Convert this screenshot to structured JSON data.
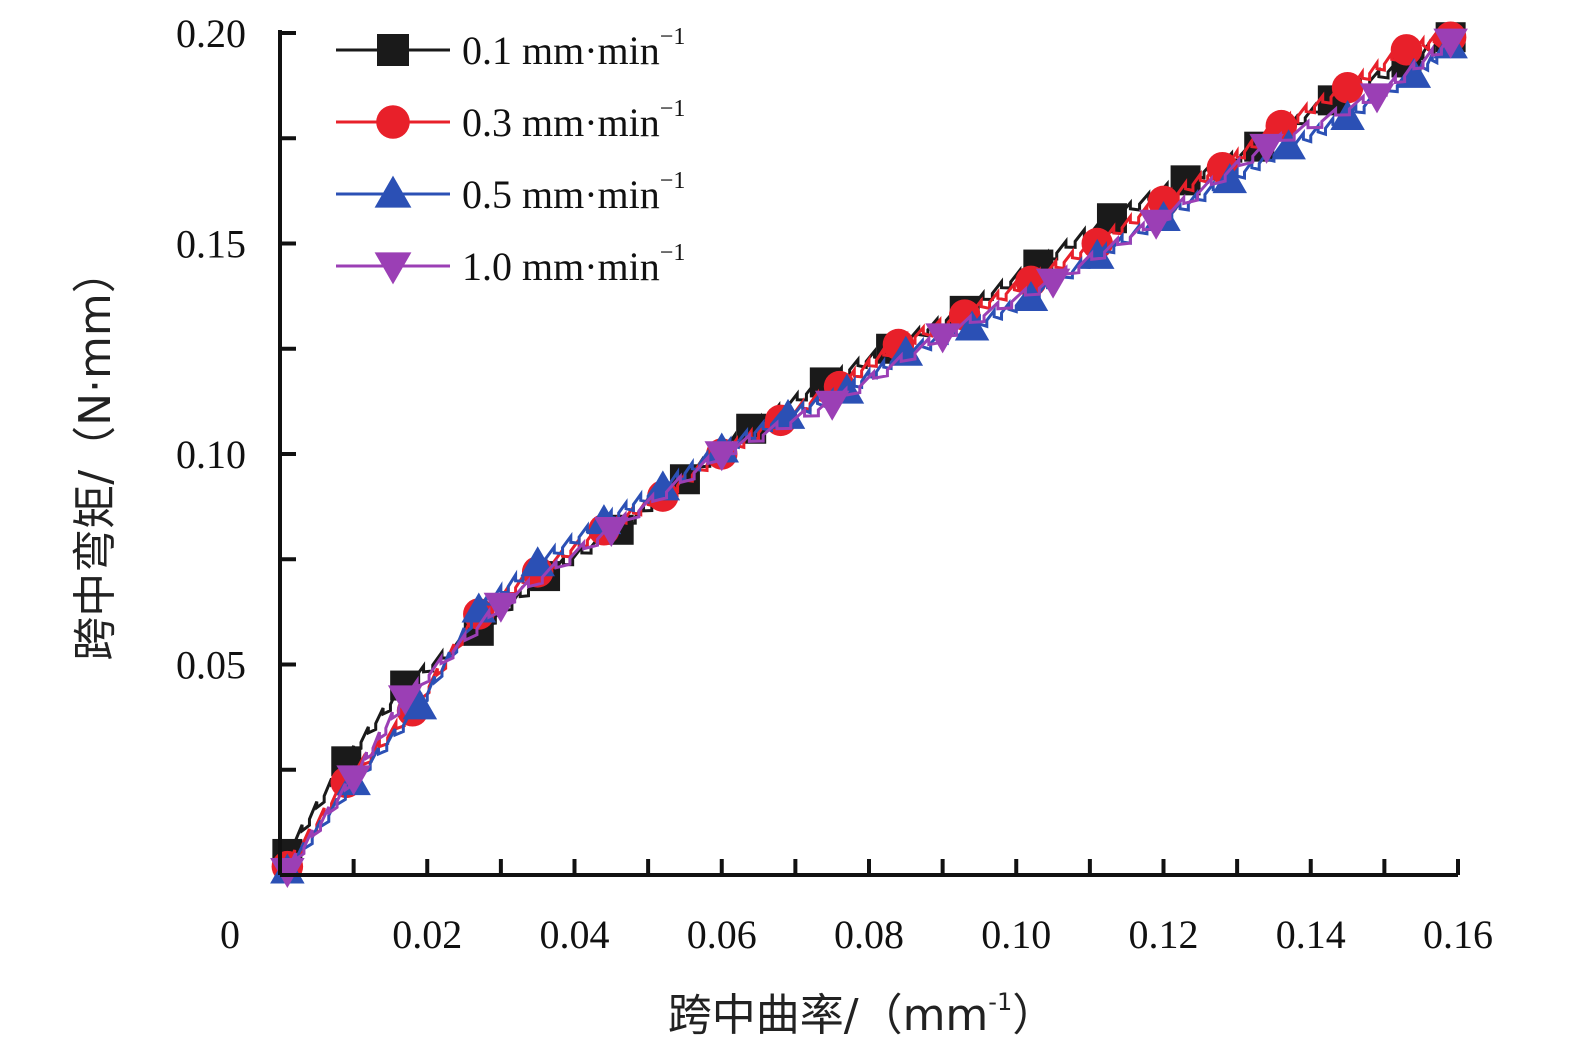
{
  "chart_data": {
    "type": "line",
    "title": "",
    "xlabel": "跨中曲率/（mm",
    "xlabel_sup": "-1",
    "xlabel_end": "）",
    "ylabel": "跨中弯矩/（N·mm）",
    "xlim": [
      0,
      0.16
    ],
    "ylim": [
      0,
      0.2
    ],
    "x_ticks": [
      "0",
      "0.02",
      "0.04",
      "0.06",
      "0.08",
      "0.10",
      "0.12",
      "0.14",
      "0.16"
    ],
    "y_ticks": [
      "0",
      "0.05",
      "0.10",
      "0.15",
      "0.20"
    ],
    "grid": false,
    "legend_position": "top-left",
    "series": [
      {
        "name": "0.1 mm·min",
        "sup": "−1",
        "color": "#1a1a1a",
        "marker": "square",
        "points": [
          [
            0.001,
            0.005
          ],
          [
            0.009,
            0.027
          ],
          [
            0.017,
            0.045
          ],
          [
            0.027,
            0.058
          ],
          [
            0.036,
            0.071
          ],
          [
            0.046,
            0.082
          ],
          [
            0.055,
            0.094
          ],
          [
            0.064,
            0.106
          ],
          [
            0.074,
            0.117
          ],
          [
            0.083,
            0.125
          ],
          [
            0.093,
            0.134
          ],
          [
            0.103,
            0.145
          ],
          [
            0.113,
            0.156
          ],
          [
            0.123,
            0.165
          ],
          [
            0.133,
            0.173
          ],
          [
            0.143,
            0.184
          ],
          [
            0.153,
            0.193
          ],
          [
            0.159,
            0.199
          ]
        ]
      },
      {
        "name": "0.3 mm·min",
        "sup": "−1",
        "color": "#e8202a",
        "marker": "circle",
        "points": [
          [
            0.001,
            0.002
          ],
          [
            0.009,
            0.022
          ],
          [
            0.018,
            0.039
          ],
          [
            0.027,
            0.062
          ],
          [
            0.035,
            0.072
          ],
          [
            0.044,
            0.082
          ],
          [
            0.052,
            0.09
          ],
          [
            0.06,
            0.1
          ],
          [
            0.068,
            0.108
          ],
          [
            0.076,
            0.116
          ],
          [
            0.084,
            0.126
          ],
          [
            0.093,
            0.133
          ],
          [
            0.102,
            0.141
          ],
          [
            0.111,
            0.15
          ],
          [
            0.12,
            0.16
          ],
          [
            0.128,
            0.168
          ],
          [
            0.136,
            0.178
          ],
          [
            0.145,
            0.187
          ],
          [
            0.153,
            0.196
          ],
          [
            0.159,
            0.199
          ]
        ]
      },
      {
        "name": "0.5 mm·min",
        "sup": "−1",
        "color": "#2b50b5",
        "marker": "triangle-up",
        "points": [
          [
            0.001,
            0.001
          ],
          [
            0.01,
            0.022
          ],
          [
            0.019,
            0.04
          ],
          [
            0.027,
            0.063
          ],
          [
            0.035,
            0.074
          ],
          [
            0.044,
            0.084
          ],
          [
            0.052,
            0.092
          ],
          [
            0.06,
            0.101
          ],
          [
            0.069,
            0.109
          ],
          [
            0.077,
            0.115
          ],
          [
            0.085,
            0.124
          ],
          [
            0.094,
            0.13
          ],
          [
            0.102,
            0.137
          ],
          [
            0.111,
            0.147
          ],
          [
            0.12,
            0.156
          ],
          [
            0.129,
            0.165
          ],
          [
            0.137,
            0.173
          ],
          [
            0.145,
            0.18
          ],
          [
            0.154,
            0.19
          ],
          [
            0.159,
            0.197
          ]
        ]
      },
      {
        "name": "1.0 mm·min",
        "sup": "−1",
        "color": "#9b3fb5",
        "marker": "triangle-down",
        "points": [
          [
            0.001,
            0.001
          ],
          [
            0.01,
            0.023
          ],
          [
            0.017,
            0.042
          ],
          [
            0.03,
            0.064
          ],
          [
            0.045,
            0.082
          ],
          [
            0.06,
            0.1
          ],
          [
            0.075,
            0.112
          ],
          [
            0.09,
            0.128
          ],
          [
            0.105,
            0.141
          ],
          [
            0.119,
            0.155
          ],
          [
            0.134,
            0.173
          ],
          [
            0.149,
            0.185
          ],
          [
            0.159,
            0.198
          ]
        ]
      }
    ]
  }
}
